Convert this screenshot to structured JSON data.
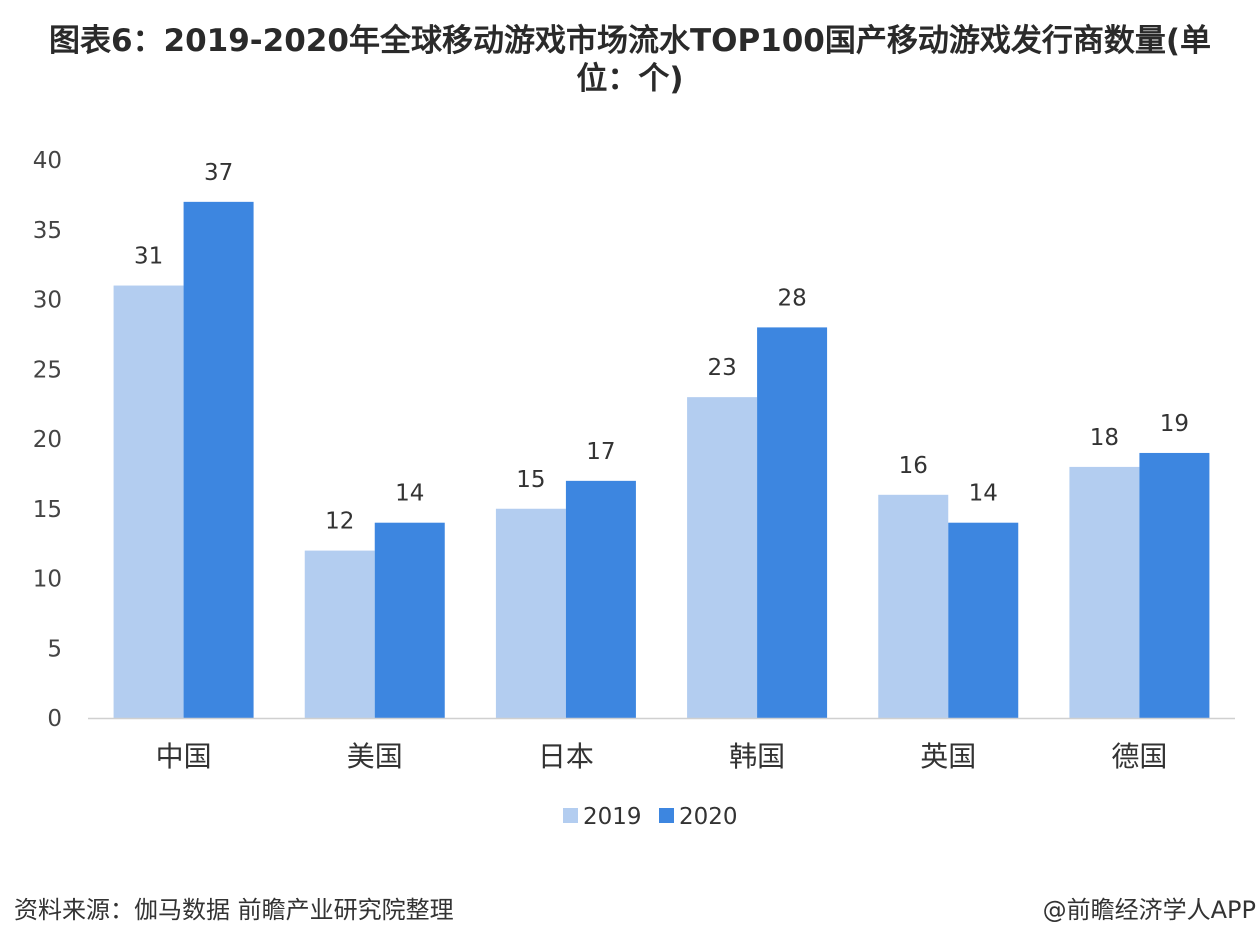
{
  "title": "图表6：2019-2020年全球移动游戏市场流水TOP100国产移动游戏发行商数量(单位：个)",
  "source": "资料来源：伽马数据 前瞻产业研究院整理",
  "credit": "@前瞻经济学人APP",
  "colors": {
    "series_2019": "#b3cdf0",
    "series_2020": "#3d86e0",
    "axis": "#d0d0d0",
    "text": "#444444"
  },
  "chart_data": {
    "type": "bar",
    "categories": [
      "中国",
      "美国",
      "日本",
      "韩国",
      "英国",
      "德国"
    ],
    "series": [
      {
        "name": "2019",
        "values": [
          31,
          12,
          15,
          23,
          16,
          18
        ]
      },
      {
        "name": "2020",
        "values": [
          37,
          14,
          17,
          28,
          14,
          19
        ]
      }
    ],
    "ylim": [
      0,
      40
    ],
    "yticks": [
      0,
      5,
      10,
      15,
      20,
      25,
      30,
      35,
      40
    ],
    "grid": false,
    "legend": "bottom"
  }
}
